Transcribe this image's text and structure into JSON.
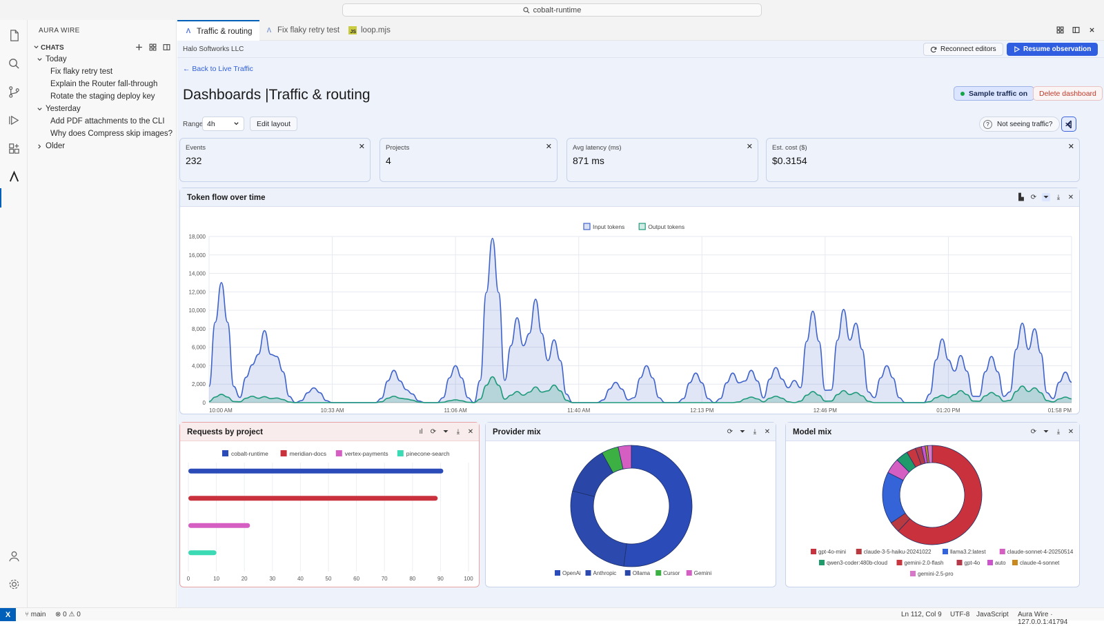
{
  "titlebar": {
    "search_text": "cobalt-runtime"
  },
  "sidebar": {
    "title": "AURA WIRE",
    "section": "CHATS",
    "groups": [
      {
        "label": "Today",
        "items": [
          "Fix flaky retry test",
          "Explain the Router fall-through",
          "Rotate the staging deploy key"
        ]
      },
      {
        "label": "Yesterday",
        "items": [
          "Add PDF attachments to the CLI",
          "Why does Compress skip images?"
        ]
      },
      {
        "label": "Older",
        "items": []
      }
    ]
  },
  "tabs": [
    {
      "label": "Traffic & routing",
      "icon": "aura-icon",
      "active": true
    },
    {
      "label": "Fix flaky retry test",
      "icon": "aura-icon",
      "active": false
    },
    {
      "label": "loop.mjs",
      "icon": "js-icon",
      "active": false
    }
  ],
  "header": {
    "company": "Halo Softworks LLC",
    "reconnect": "Reconnect editors",
    "resume": "Resume observation",
    "back": "← Back to Live Traffic",
    "title": "Dashboards |Traffic & routing",
    "sample": "Sample traffic on",
    "delete": "Delete dashboard"
  },
  "toolbar": {
    "range_label": "Range",
    "range_value": "4h",
    "edit_layout": "Edit layout",
    "not_seeing": "Not seeing traffic?"
  },
  "stats": [
    {
      "label": "Events",
      "value": "232"
    },
    {
      "label": "Projects",
      "value": "4"
    },
    {
      "label": "Avg latency (ms)",
      "value": "871 ms"
    },
    {
      "label": "Est. cost ($)",
      "value": "$0.3154"
    }
  ],
  "panels": {
    "token_flow": "Token flow over time",
    "requests": "Requests by project",
    "provider": "Provider mix",
    "model": "Model mix"
  },
  "chart_data": [
    {
      "type": "area",
      "title": "Token flow over time",
      "x_ticks": [
        "10:00 AM",
        "10:33 AM",
        "11:06 AM",
        "11:40 AM",
        "12:13 PM",
        "12:46 PM",
        "01:20 PM",
        "01:58 PM"
      ],
      "ylim": [
        0,
        18000
      ],
      "y_ticks": [
        "0",
        "2,000",
        "4,000",
        "6,000",
        "8,000",
        "10,000",
        "12,000",
        "14,000",
        "16,000",
        "18,000"
      ],
      "grid": true,
      "legend": "top-center",
      "series": [
        {
          "name": "Input tokens",
          "color": "#3f63c9",
          "peaks": [
            [
              2,
              13000
            ],
            [
              7,
              4100
            ],
            [
              9,
              7800
            ],
            [
              11,
              5000
            ],
            [
              17,
              1600
            ],
            [
              30,
              3500
            ],
            [
              32,
              1400
            ],
            [
              40,
              4000
            ],
            [
              46,
              17800
            ],
            [
              50,
              9200
            ],
            [
              53,
              11200
            ],
            [
              56,
              6800
            ],
            [
              66,
              2200
            ],
            [
              71,
              4000
            ],
            [
              79,
              3200
            ],
            [
              85,
              3200
            ],
            [
              88,
              3500
            ],
            [
              92,
              3800
            ],
            [
              95,
              2400
            ],
            [
              98,
              9900
            ],
            [
              103,
              10100
            ],
            [
              105,
              8600
            ],
            [
              110,
              4000
            ],
            [
              119,
              6900
            ],
            [
              122,
              5100
            ],
            [
              127,
              5000
            ],
            [
              132,
              8600
            ],
            [
              134,
              8000
            ],
            [
              139,
              3300
            ]
          ]
        },
        {
          "name": "Output tokens",
          "color": "#1e9a7a",
          "peaks": [
            [
              2,
              900
            ],
            [
              7,
              700
            ],
            [
              9,
              650
            ],
            [
              11,
              500
            ],
            [
              30,
              700
            ],
            [
              32,
              400
            ],
            [
              40,
              300
            ],
            [
              46,
              2800
            ],
            [
              50,
              1200
            ],
            [
              53,
              1700
            ],
            [
              56,
              1900
            ],
            [
              88,
              600
            ],
            [
              92,
              700
            ],
            [
              98,
              1200
            ],
            [
              103,
              1300
            ],
            [
              105,
              1100
            ],
            [
              119,
              800
            ],
            [
              122,
              1300
            ],
            [
              127,
              1100
            ],
            [
              132,
              1800
            ],
            [
              134,
              1600
            ],
            [
              139,
              600
            ]
          ]
        }
      ]
    },
    {
      "type": "bar",
      "title": "Requests by project",
      "orientation": "horizontal",
      "categories": [
        "cobalt-runtime",
        "meridian-docs",
        "vertex-payments",
        "pinecone-search"
      ],
      "values": [
        91,
        89,
        22,
        10
      ],
      "colors": [
        "#2b4bb8",
        "#c9323d",
        "#d45ec2",
        "#3bd9b4"
      ],
      "xlim": [
        0,
        100
      ],
      "x_ticks": [
        "0",
        "10",
        "20",
        "30",
        "40",
        "50",
        "60",
        "70",
        "80",
        "90",
        "100"
      ],
      "legend": "top-center"
    },
    {
      "type": "pie",
      "donut": true,
      "title": "Provider mix",
      "labels": [
        "OpenAi",
        "Anthropic",
        "Ollama",
        "Cursor",
        "Gemini"
      ],
      "values": [
        52,
        27,
        13,
        4.5,
        3.5
      ],
      "colors": [
        "#2b4bb8",
        "#2c4aad",
        "#2a47a8",
        "#3cb043",
        "#d45ec2"
      ],
      "legend": "bottom"
    },
    {
      "type": "pie",
      "donut": true,
      "title": "Model mix",
      "labels": [
        "gpt-4o-mini",
        "claude-3-5-haiku-20241022",
        "llama3.2:latest",
        "claude-sonnet-4-20250514",
        "qwen3-coder:480b-cloud",
        "gemini-2.0-flash",
        "gpt-4o",
        "auto",
        "claude-4-sonnet",
        "gemini-2.5-pro"
      ],
      "values": [
        62,
        3.5,
        17,
        5,
        4,
        3,
        2,
        1.2,
        0.8,
        1.5
      ],
      "colors": [
        "#c9323d",
        "#b83a40",
        "#3464d8",
        "#d45ec2",
        "#1f9a6b",
        "#c6373f",
        "#b33a48",
        "#cc55cc",
        "#c88a1e",
        "#d877c8"
      ],
      "legend": "bottom"
    }
  ],
  "statusbar": {
    "remote": "X",
    "branch": "main",
    "problems": "0",
    "warnings": "0",
    "position": "Ln 112, Col 9",
    "encoding": "UTF-8",
    "language": "JavaScript",
    "server": "Aura Wire · 127.0.0.1:41794"
  }
}
